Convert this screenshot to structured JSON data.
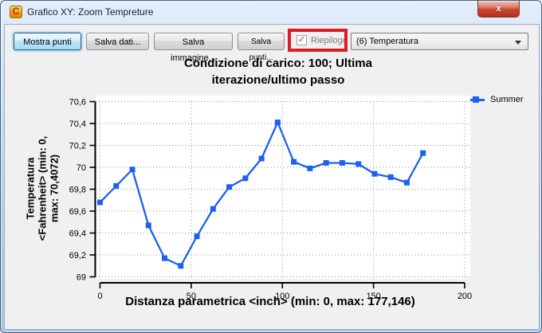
{
  "window": {
    "title": "Grafico XY: Zoom Tempreture",
    "app_icon_glyph": "C",
    "close_glyph": "x"
  },
  "toolbar": {
    "buttons": [
      "Mostra punti",
      "Salva dati...",
      "Salva immagine...",
      "Salva punti..."
    ],
    "checkbox": {
      "label": "Riepilogo",
      "checked": true,
      "disabled": true,
      "check_glyph": "✓"
    },
    "dropdown": {
      "value": "(6) Temperatura"
    }
  },
  "annotation": {
    "color": "#dc1c22",
    "purpose": "red highlight box around Riepilogo checkbox"
  },
  "chart_data": {
    "type": "line",
    "title": "Condizione di carico: 100; Ultima iterazione/ultimo passo",
    "title_lines": [
      "Condizione di carico: 100; Ultima",
      "iterazione/ultimo passo"
    ],
    "xlabel": "Distanza parametrica <inch> (min: 0, max: 177,146)",
    "ylabel": "Temperatura <Fahrenheit> (min: 0, max: 70,4072)",
    "ylabel_lines": [
      "Temperatura",
      "<Fahrenheit> (min: 0,",
      "max: 70,4072)"
    ],
    "xlim": [
      0,
      200
    ],
    "ylim": [
      69,
      70.6
    ],
    "grid": true,
    "legend_position": "top-right-outside",
    "x_ticks": [
      {
        "v": 0,
        "label": "0"
      },
      {
        "v": 50,
        "label": "50"
      },
      {
        "v": 100,
        "label": "100"
      },
      {
        "v": 150,
        "label": "150"
      },
      {
        "v": 200,
        "label": "200"
      }
    ],
    "y_ticks": [
      {
        "v": 69,
        "label": "69"
      },
      {
        "v": 69.2,
        "label": "69,2"
      },
      {
        "v": 69.4,
        "label": "69,4"
      },
      {
        "v": 69.6,
        "label": "69,6"
      },
      {
        "v": 69.8,
        "label": "69,8"
      },
      {
        "v": 70,
        "label": "70"
      },
      {
        "v": 70.2,
        "label": "70,2"
      },
      {
        "v": 70.4,
        "label": "70,4"
      },
      {
        "v": 70.6,
        "label": "70,6"
      }
    ],
    "series": [
      {
        "name": "Summer",
        "color": "#1b61ee",
        "marker": "square",
        "x": [
          0,
          8.86,
          17.71,
          26.57,
          35.43,
          44.29,
          53.14,
          62.0,
          70.86,
          79.72,
          88.57,
          97.43,
          106.29,
          115.15,
          124.0,
          132.86,
          141.72,
          150.57,
          159.43,
          168.29,
          177.146
        ],
        "y": [
          69.68,
          69.83,
          69.98,
          69.47,
          69.17,
          69.1,
          69.37,
          69.62,
          69.82,
          69.9,
          70.08,
          70.41,
          70.05,
          69.99,
          70.04,
          70.04,
          70.03,
          69.94,
          69.91,
          69.86,
          70.13
        ]
      }
    ]
  }
}
